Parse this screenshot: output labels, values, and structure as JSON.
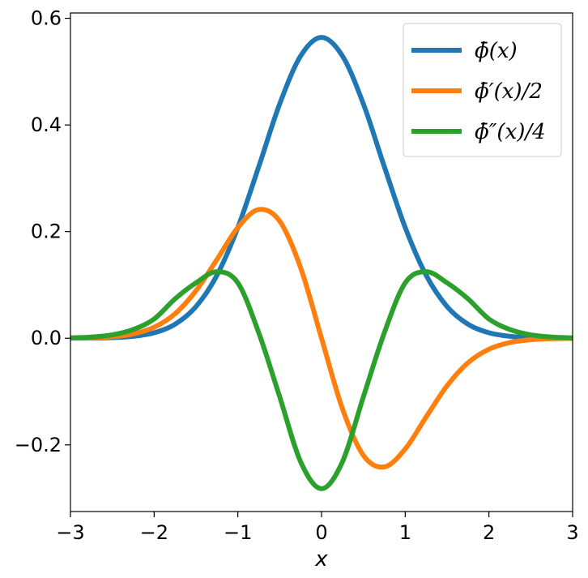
{
  "chart_data": {
    "type": "line",
    "title": "",
    "xlabel": "x",
    "ylabel": "",
    "xlim": [
      -3,
      3
    ],
    "ylim": [
      -0.325,
      0.61
    ],
    "xticks": [
      -3,
      -2,
      -1,
      0,
      1,
      2,
      3
    ],
    "xtick_labels": [
      "−3",
      "−2",
      "−1",
      "0",
      "1",
      "2",
      "3"
    ],
    "yticks": [
      -0.2,
      0.0,
      0.2,
      0.4,
      0.6
    ],
    "ytick_labels": [
      "−0.2",
      "0.0",
      "0.2",
      "0.4",
      "0.6"
    ],
    "grid": false,
    "legend_position": "top-right",
    "x": [
      -3.0,
      -2.75,
      -2.5,
      -2.25,
      -2.0,
      -1.75,
      -1.5,
      -1.25,
      -1.0,
      -0.75,
      -0.5,
      -0.25,
      0.0,
      0.25,
      0.5,
      0.75,
      1.0,
      1.25,
      1.5,
      1.75,
      2.0,
      2.25,
      2.5,
      2.75,
      3.0
    ],
    "series": [
      {
        "name": "ϕ̄(x)",
        "color": "#1f77b4",
        "values": [
          0.0001,
          0.0003,
          0.0011,
          0.0036,
          0.0103,
          0.0263,
          0.0594,
          0.1181,
          0.2076,
          0.3219,
          0.4394,
          0.5293,
          0.5642,
          0.5293,
          0.4394,
          0.3219,
          0.2076,
          0.1181,
          0.0594,
          0.0263,
          0.0103,
          0.0036,
          0.0011,
          0.0003,
          0.0001
        ]
      },
      {
        "name": "ϕ̄′(x)/2",
        "color": "#ff7f0e",
        "values": [
          0.0004,
          0.0009,
          0.0028,
          0.0081,
          0.0206,
          0.046,
          0.0891,
          0.1476,
          0.2076,
          0.2414,
          0.2197,
          0.1323,
          0.0,
          -0.1323,
          -0.2197,
          -0.2414,
          -0.2076,
          -0.1476,
          -0.0891,
          -0.046,
          -0.0206,
          -0.0081,
          -0.0028,
          -0.0009,
          -0.0004
        ]
      },
      {
        "name": "ϕ̄″(x)/4",
        "color": "#2ca02c",
        "values": [
          0.0007,
          0.0023,
          0.0063,
          0.0164,
          0.0361,
          0.0739,
          0.1039,
          0.1249,
          0.1038,
          0.0101,
          -0.1098,
          -0.2316,
          -0.2821,
          -0.2316,
          -0.1098,
          0.0101,
          0.1038,
          0.1249,
          0.1039,
          0.0739,
          0.0361,
          0.0164,
          0.0063,
          0.0023,
          0.0007
        ]
      }
    ]
  }
}
